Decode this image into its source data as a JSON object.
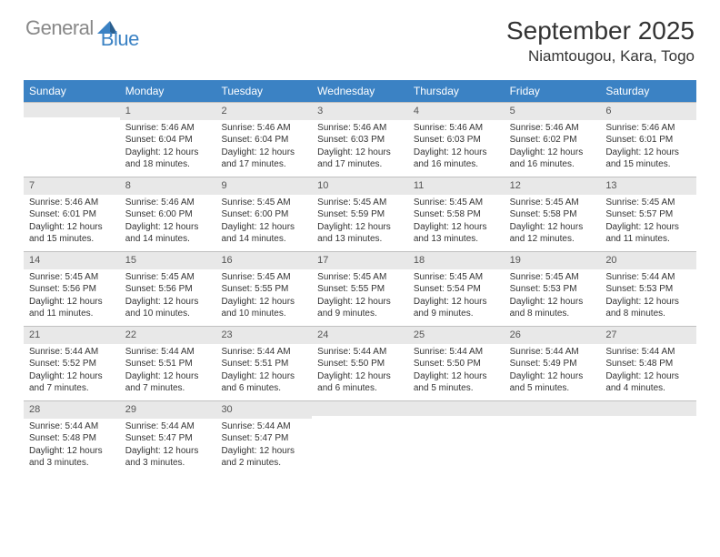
{
  "brand": {
    "name_a": "General",
    "name_b": "Blue"
  },
  "title": "September 2025",
  "location": "Niamtougou, Kara, Togo",
  "colors": {
    "accent": "#3b82c4",
    "header_text": "#ffffff",
    "daybar_bg": "#e8e8e8",
    "daybar_border": "#c0c0c0",
    "text": "#333333",
    "logo_gray": "#888888"
  },
  "day_headers": [
    "Sunday",
    "Monday",
    "Tuesday",
    "Wednesday",
    "Thursday",
    "Friday",
    "Saturday"
  ],
  "weeks": [
    [
      {
        "n": "",
        "sr": "",
        "ss": "",
        "dl": ""
      },
      {
        "n": "1",
        "sr": "Sunrise: 5:46 AM",
        "ss": "Sunset: 6:04 PM",
        "dl": "Daylight: 12 hours and 18 minutes."
      },
      {
        "n": "2",
        "sr": "Sunrise: 5:46 AM",
        "ss": "Sunset: 6:04 PM",
        "dl": "Daylight: 12 hours and 17 minutes."
      },
      {
        "n": "3",
        "sr": "Sunrise: 5:46 AM",
        "ss": "Sunset: 6:03 PM",
        "dl": "Daylight: 12 hours and 17 minutes."
      },
      {
        "n": "4",
        "sr": "Sunrise: 5:46 AM",
        "ss": "Sunset: 6:03 PM",
        "dl": "Daylight: 12 hours and 16 minutes."
      },
      {
        "n": "5",
        "sr": "Sunrise: 5:46 AM",
        "ss": "Sunset: 6:02 PM",
        "dl": "Daylight: 12 hours and 16 minutes."
      },
      {
        "n": "6",
        "sr": "Sunrise: 5:46 AM",
        "ss": "Sunset: 6:01 PM",
        "dl": "Daylight: 12 hours and 15 minutes."
      }
    ],
    [
      {
        "n": "7",
        "sr": "Sunrise: 5:46 AM",
        "ss": "Sunset: 6:01 PM",
        "dl": "Daylight: 12 hours and 15 minutes."
      },
      {
        "n": "8",
        "sr": "Sunrise: 5:46 AM",
        "ss": "Sunset: 6:00 PM",
        "dl": "Daylight: 12 hours and 14 minutes."
      },
      {
        "n": "9",
        "sr": "Sunrise: 5:45 AM",
        "ss": "Sunset: 6:00 PM",
        "dl": "Daylight: 12 hours and 14 minutes."
      },
      {
        "n": "10",
        "sr": "Sunrise: 5:45 AM",
        "ss": "Sunset: 5:59 PM",
        "dl": "Daylight: 12 hours and 13 minutes."
      },
      {
        "n": "11",
        "sr": "Sunrise: 5:45 AM",
        "ss": "Sunset: 5:58 PM",
        "dl": "Daylight: 12 hours and 13 minutes."
      },
      {
        "n": "12",
        "sr": "Sunrise: 5:45 AM",
        "ss": "Sunset: 5:58 PM",
        "dl": "Daylight: 12 hours and 12 minutes."
      },
      {
        "n": "13",
        "sr": "Sunrise: 5:45 AM",
        "ss": "Sunset: 5:57 PM",
        "dl": "Daylight: 12 hours and 11 minutes."
      }
    ],
    [
      {
        "n": "14",
        "sr": "Sunrise: 5:45 AM",
        "ss": "Sunset: 5:56 PM",
        "dl": "Daylight: 12 hours and 11 minutes."
      },
      {
        "n": "15",
        "sr": "Sunrise: 5:45 AM",
        "ss": "Sunset: 5:56 PM",
        "dl": "Daylight: 12 hours and 10 minutes."
      },
      {
        "n": "16",
        "sr": "Sunrise: 5:45 AM",
        "ss": "Sunset: 5:55 PM",
        "dl": "Daylight: 12 hours and 10 minutes."
      },
      {
        "n": "17",
        "sr": "Sunrise: 5:45 AM",
        "ss": "Sunset: 5:55 PM",
        "dl": "Daylight: 12 hours and 9 minutes."
      },
      {
        "n": "18",
        "sr": "Sunrise: 5:45 AM",
        "ss": "Sunset: 5:54 PM",
        "dl": "Daylight: 12 hours and 9 minutes."
      },
      {
        "n": "19",
        "sr": "Sunrise: 5:45 AM",
        "ss": "Sunset: 5:53 PM",
        "dl": "Daylight: 12 hours and 8 minutes."
      },
      {
        "n": "20",
        "sr": "Sunrise: 5:44 AM",
        "ss": "Sunset: 5:53 PM",
        "dl": "Daylight: 12 hours and 8 minutes."
      }
    ],
    [
      {
        "n": "21",
        "sr": "Sunrise: 5:44 AM",
        "ss": "Sunset: 5:52 PM",
        "dl": "Daylight: 12 hours and 7 minutes."
      },
      {
        "n": "22",
        "sr": "Sunrise: 5:44 AM",
        "ss": "Sunset: 5:51 PM",
        "dl": "Daylight: 12 hours and 7 minutes."
      },
      {
        "n": "23",
        "sr": "Sunrise: 5:44 AM",
        "ss": "Sunset: 5:51 PM",
        "dl": "Daylight: 12 hours and 6 minutes."
      },
      {
        "n": "24",
        "sr": "Sunrise: 5:44 AM",
        "ss": "Sunset: 5:50 PM",
        "dl": "Daylight: 12 hours and 6 minutes."
      },
      {
        "n": "25",
        "sr": "Sunrise: 5:44 AM",
        "ss": "Sunset: 5:50 PM",
        "dl": "Daylight: 12 hours and 5 minutes."
      },
      {
        "n": "26",
        "sr": "Sunrise: 5:44 AM",
        "ss": "Sunset: 5:49 PM",
        "dl": "Daylight: 12 hours and 5 minutes."
      },
      {
        "n": "27",
        "sr": "Sunrise: 5:44 AM",
        "ss": "Sunset: 5:48 PM",
        "dl": "Daylight: 12 hours and 4 minutes."
      }
    ],
    [
      {
        "n": "28",
        "sr": "Sunrise: 5:44 AM",
        "ss": "Sunset: 5:48 PM",
        "dl": "Daylight: 12 hours and 3 minutes."
      },
      {
        "n": "29",
        "sr": "Sunrise: 5:44 AM",
        "ss": "Sunset: 5:47 PM",
        "dl": "Daylight: 12 hours and 3 minutes."
      },
      {
        "n": "30",
        "sr": "Sunrise: 5:44 AM",
        "ss": "Sunset: 5:47 PM",
        "dl": "Daylight: 12 hours and 2 minutes."
      },
      {
        "n": "",
        "sr": "",
        "ss": "",
        "dl": ""
      },
      {
        "n": "",
        "sr": "",
        "ss": "",
        "dl": ""
      },
      {
        "n": "",
        "sr": "",
        "ss": "",
        "dl": ""
      },
      {
        "n": "",
        "sr": "",
        "ss": "",
        "dl": ""
      }
    ]
  ]
}
